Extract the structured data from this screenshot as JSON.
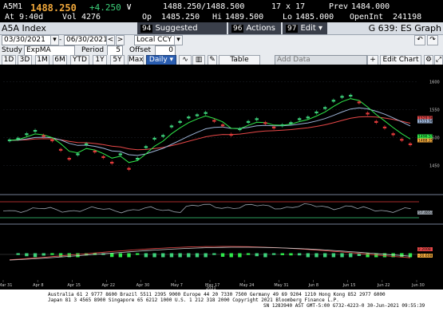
{
  "quote": {
    "ticker": "A5M1",
    "last": "1488.250",
    "change": "+4.250",
    "time": "At 9:40d",
    "vol_label": "Vol",
    "vol": "4276",
    "bidask": "1488.250/1488.500",
    "size": "17 x 17",
    "prev_label": "Prev",
    "prev": "1484.000",
    "op_label": "Op",
    "op": "1485.250",
    "hi_label": "Hi",
    "hi": "1489.500",
    "lo_label": "Lo",
    "lo": "1485.000",
    "oi_label": "OpenInt",
    "oi": "241198"
  },
  "titlebar": {
    "security": "A5A Index",
    "menus": [
      {
        "num": "94",
        "label": "Suggested Charts"
      },
      {
        "num": "96",
        "label": "Actions ▾"
      },
      {
        "num": "97",
        "label": "Edit ▾"
      }
    ],
    "graph_title": "G 639: ES Graph"
  },
  "toolbar1": {
    "start_date": "03/30/2021",
    "end_date": "06/30/2021",
    "currency": "Local CCY"
  },
  "toolbar2": {
    "study_label": "Study",
    "study": "ExpMA",
    "period_label": "Period",
    "period": "5",
    "offset_label": "Offset",
    "offset": "0"
  },
  "toolbar3": {
    "ranges": [
      "1D",
      "3D",
      "1M",
      "6M",
      "YTD",
      "1Y",
      "5Y",
      "Max"
    ],
    "frequency": "Daily ▾",
    "table_label": "Table",
    "add_data_placeholder": "Add Data",
    "edit_chart_label": "Edit Chart"
  },
  "chart_data": {
    "type": "candlestick",
    "x_ticks": [
      "Mar 31",
      "Apr 8",
      "Apr 15",
      "Apr 22",
      "Apr 30",
      "May 7",
      "May 17",
      "May 24",
      "May 31",
      "Jun 8",
      "Jun 15",
      "Jun 22",
      "Jun 30"
    ],
    "year_label": "2021",
    "y_ticks": [
      "1600",
      "1550",
      "1500",
      "1450"
    ],
    "ylim": [
      1405,
      1625
    ],
    "current_labels": [
      "1529.962",
      "1513.963",
      "1496.573",
      "1488.250"
    ],
    "lower1_labels": [
      "57.4653"
    ],
    "lower2_labels": [
      "2.2008",
      "-20.608"
    ],
    "candles": [
      1495,
      1498,
      1506,
      1512,
      1503,
      1495,
      1478,
      1462,
      1470,
      1488,
      1475,
      1465,
      1455,
      1470,
      1444,
      1462,
      1483,
      1498,
      1503,
      1520,
      1528,
      1536,
      1540,
      1544,
      1530,
      1522,
      1505,
      1515,
      1528,
      1533,
      1526,
      1518,
      1522,
      1526,
      1533,
      1536,
      1545,
      1553,
      1566,
      1573,
      1575,
      1563,
      1543,
      1528,
      1518,
      1506,
      1496,
      1488
    ],
    "colors": {
      "candle_up": "#3dd17a",
      "candle_down": "#e03a3a",
      "ema_fast": "#2ee84a",
      "ema_mid": "#9cb3d6",
      "ema_slow": "#e84848"
    }
  },
  "footer": {
    "line1": "Australia 61 2 9777 8600 Brazil 5511 2395 9000 Europe 44 20 7330 7500 Germany 49 69 9204 1210 Hong Kong 852 2977 6000",
    "line2": "Japan 81 3 4565 8900       Singapore 65 6212 1000       U.S. 1 212 318 2000       Copyright 2021 Bloomberg Finance L.P.",
    "line3": "SN 1283940 AST  GMT-5:00 G732-4223-0 30-Jun-2021 09:55:39"
  }
}
